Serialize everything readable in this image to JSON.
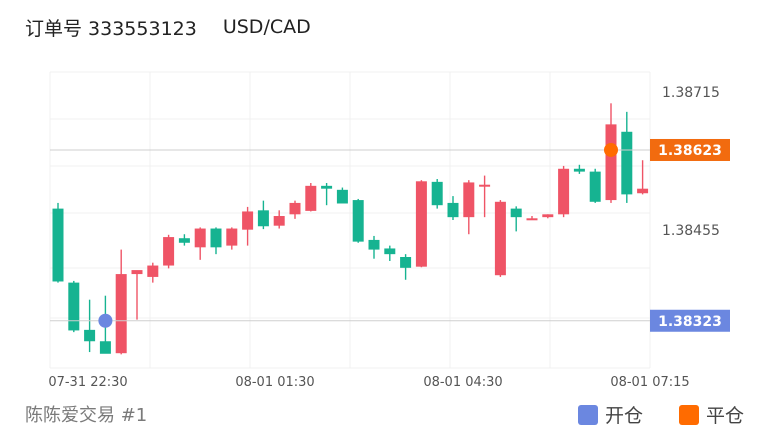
{
  "header": {
    "order_label": "订单号 333553123",
    "pair": "USD/CAD"
  },
  "footer": {
    "account": "陈陈爱交易 #1"
  },
  "legend": {
    "open_label": "开仓",
    "open_color": "#6b87e0",
    "close_label": "平仓",
    "close_color": "#ff6b00"
  },
  "chart_data": {
    "type": "candlestick",
    "title": "",
    "y_ticks": [
      "1.38715",
      "1.38455"
    ],
    "x_ticks": [
      "07-31 22:30",
      "08-01 01:30",
      "08-01 04:30",
      "08-01 07:15"
    ],
    "price_tags": [
      {
        "label": "1.38623",
        "value": 1.38623,
        "color": "#f26b0f",
        "marker": "close"
      },
      {
        "label": "1.38323",
        "value": 1.38323,
        "color": "#6b87e0",
        "marker": "open"
      }
    ],
    "ylim": [
      1.3824,
      1.3876
    ],
    "up_color": "#ef5466",
    "down_color": "#16b391",
    "candles": [
      {
        "o": 1.3852,
        "h": 1.3853,
        "l": 1.3839,
        "c": 1.38392
      },
      {
        "o": 1.3839,
        "h": 1.38393,
        "l": 1.38303,
        "c": 1.38306
      },
      {
        "o": 1.38307,
        "h": 1.3836,
        "l": 1.38268,
        "c": 1.38287
      },
      {
        "o": 1.38287,
        "h": 1.38367,
        "l": 1.38269,
        "c": 1.38265
      },
      {
        "o": 1.38266,
        "h": 1.38448,
        "l": 1.38264,
        "c": 1.38405
      },
      {
        "o": 1.38405,
        "h": 1.3841,
        "l": 1.38325,
        "c": 1.38412
      },
      {
        "o": 1.384,
        "h": 1.38425,
        "l": 1.3839,
        "c": 1.3842
      },
      {
        "o": 1.3842,
        "h": 1.38474,
        "l": 1.38415,
        "c": 1.3847
      },
      {
        "o": 1.38468,
        "h": 1.38475,
        "l": 1.38455,
        "c": 1.3846
      },
      {
        "o": 1.38452,
        "h": 1.38487,
        "l": 1.3843,
        "c": 1.38485
      },
      {
        "o": 1.38485,
        "h": 1.38487,
        "l": 1.3844,
        "c": 1.38452
      },
      {
        "o": 1.38455,
        "h": 1.38487,
        "l": 1.38448,
        "c": 1.38485
      },
      {
        "o": 1.38483,
        "h": 1.38523,
        "l": 1.38455,
        "c": 1.38515
      },
      {
        "o": 1.38517,
        "h": 1.38534,
        "l": 1.38484,
        "c": 1.38489
      },
      {
        "o": 1.3849,
        "h": 1.38517,
        "l": 1.38485,
        "c": 1.38507
      },
      {
        "o": 1.3851,
        "h": 1.38534,
        "l": 1.38502,
        "c": 1.3853
      },
      {
        "o": 1.38516,
        "h": 1.38565,
        "l": 1.38515,
        "c": 1.3856
      },
      {
        "o": 1.3856,
        "h": 1.38565,
        "l": 1.38526,
        "c": 1.38555
      },
      {
        "o": 1.38553,
        "h": 1.38557,
        "l": 1.3853,
        "c": 1.38529
      },
      {
        "o": 1.38535,
        "h": 1.38537,
        "l": 1.3846,
        "c": 1.38462
      },
      {
        "o": 1.38465,
        "h": 1.38472,
        "l": 1.38432,
        "c": 1.38448
      },
      {
        "o": 1.3845,
        "h": 1.38455,
        "l": 1.38428,
        "c": 1.3844
      },
      {
        "o": 1.38435,
        "h": 1.3844,
        "l": 1.38395,
        "c": 1.38416
      },
      {
        "o": 1.38418,
        "h": 1.3857,
        "l": 1.38417,
        "c": 1.38568
      },
      {
        "o": 1.38567,
        "h": 1.38572,
        "l": 1.3852,
        "c": 1.38526
      },
      {
        "o": 1.3853,
        "h": 1.38542,
        "l": 1.385,
        "c": 1.38505
      },
      {
        "o": 1.38505,
        "h": 1.3857,
        "l": 1.38475,
        "c": 1.38566
      },
      {
        "o": 1.38562,
        "h": 1.38578,
        "l": 1.38505,
        "c": 1.38562
      },
      {
        "o": 1.38403,
        "h": 1.38535,
        "l": 1.384,
        "c": 1.38532
      },
      {
        "o": 1.3852,
        "h": 1.38524,
        "l": 1.3848,
        "c": 1.38505
      },
      {
        "o": 1.38503,
        "h": 1.38507,
        "l": 1.385,
        "c": 1.38503
      },
      {
        "o": 1.38505,
        "h": 1.3851,
        "l": 1.38503,
        "c": 1.3851
      },
      {
        "o": 1.3851,
        "h": 1.38595,
        "l": 1.38505,
        "c": 1.3859
      },
      {
        "o": 1.3859,
        "h": 1.38597,
        "l": 1.38581,
        "c": 1.38585
      },
      {
        "o": 1.38585,
        "h": 1.3859,
        "l": 1.3853,
        "c": 1.38532
      },
      {
        "o": 1.38535,
        "h": 1.38705,
        "l": 1.3853,
        "c": 1.38668
      },
      {
        "o": 1.38655,
        "h": 1.3869,
        "l": 1.3853,
        "c": 1.38545
      },
      {
        "o": 1.38547,
        "h": 1.38605,
        "l": 1.38545,
        "c": 1.38555
      }
    ]
  }
}
